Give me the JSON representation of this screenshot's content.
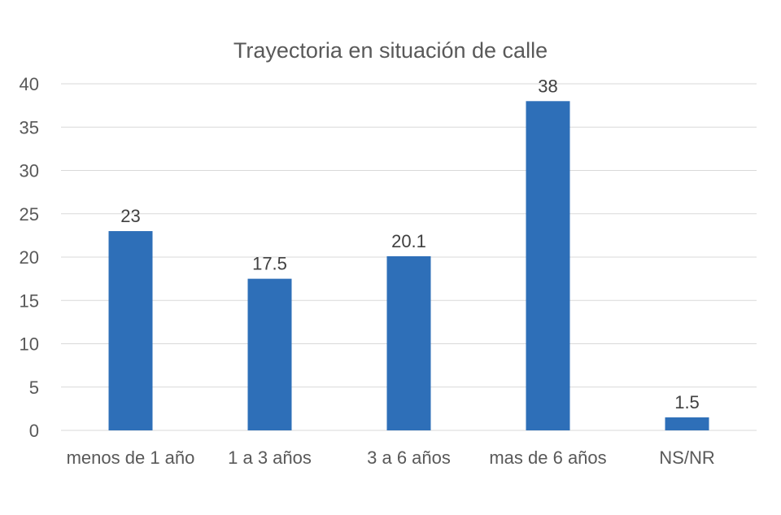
{
  "chart_data": {
    "type": "bar",
    "title": "Trayectoria en situación de calle",
    "categories": [
      "menos de 1 año",
      "1 a 3 años",
      "3 a 6 años",
      "mas de 6 años",
      "NS/NR"
    ],
    "values": [
      23,
      17.5,
      20.1,
      38,
      1.5
    ],
    "data_labels": [
      "23",
      "17.5",
      "20.1",
      "38",
      "1.5"
    ],
    "y_ticks": [
      "0",
      "5",
      "10",
      "15",
      "20",
      "25",
      "30",
      "35",
      "40"
    ],
    "xlabel": "",
    "ylabel": "",
    "ylim": [
      0,
      40
    ],
    "grid": true,
    "legend": "none",
    "bar_color": "#2e6fb8"
  }
}
